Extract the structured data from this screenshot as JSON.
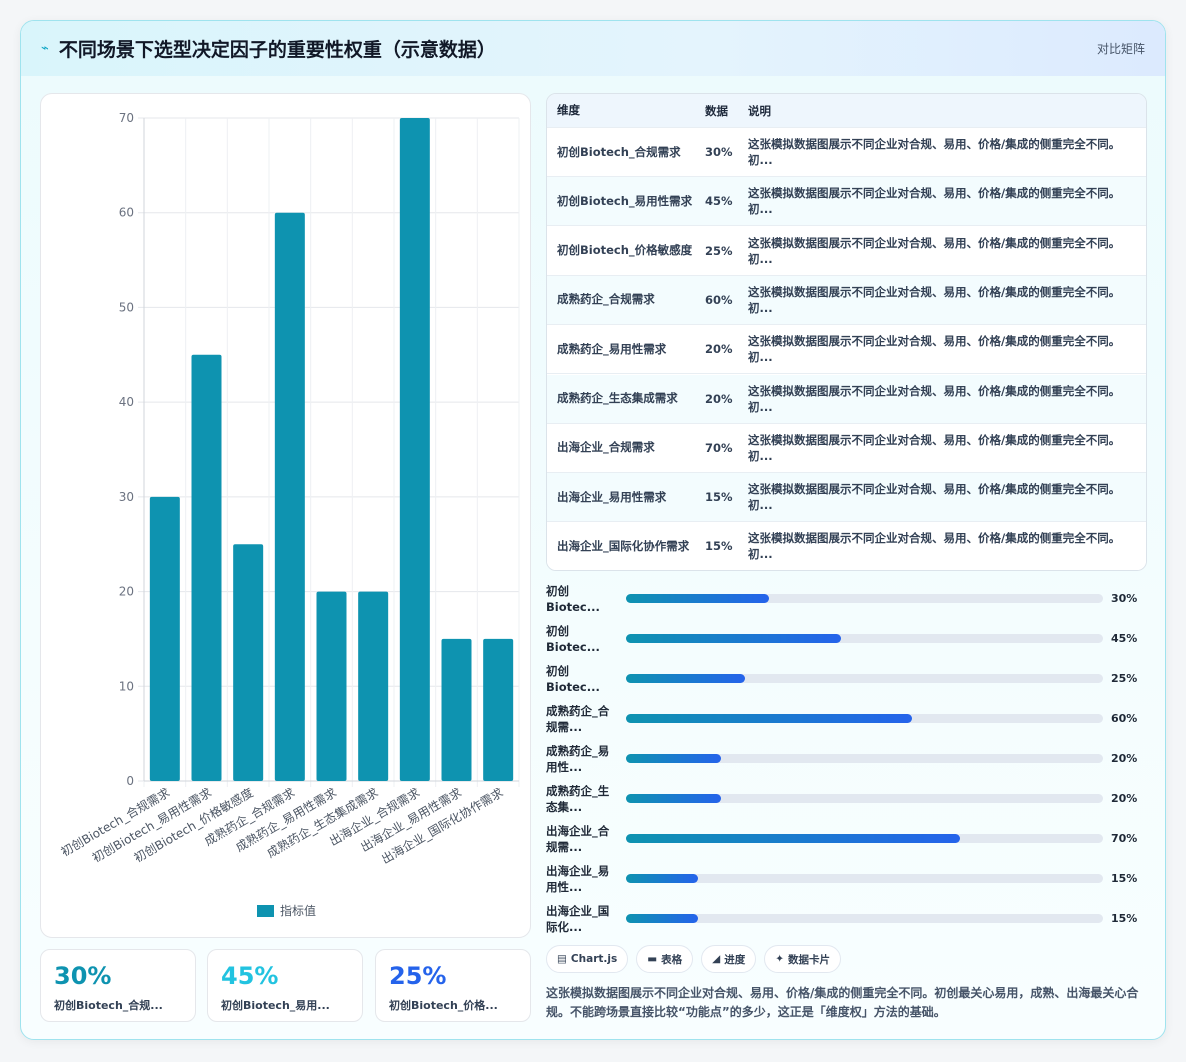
{
  "header": {
    "title": "不同场景下选型决定因子的重要性权重（示意数据）",
    "tag": "对比矩阵",
    "icon": "flash-icon"
  },
  "chart_data": {
    "type": "bar",
    "categories": [
      "初创Biotech_合规需求",
      "初创Biotech_易用性需求",
      "初创Biotech_价格敏感度",
      "成熟药企_合规需求",
      "成熟药企_易用性需求",
      "成熟药企_生态集成需求",
      "出海企业_合规需求",
      "出海企业_易用性需求",
      "出海企业_国际化协作需求"
    ],
    "series": [
      {
        "name": "指标值",
        "values": [
          30,
          45,
          25,
          60,
          20,
          20,
          70,
          15,
          15
        ]
      }
    ],
    "ylim": [
      0,
      70
    ],
    "yticks": [
      0,
      10,
      20,
      30,
      40,
      50,
      60,
      70
    ],
    "grid": true,
    "legend": "bottom",
    "color": "#0e93b0"
  },
  "table": {
    "headers": [
      "维度",
      "数据",
      "说明"
    ],
    "rows": [
      {
        "name": "初创Biotech_合规需求",
        "value": "30%",
        "desc": "这张模拟数据图展示不同企业对合规、易用、价格/集成的侧重完全不同。初..."
      },
      {
        "name": "初创Biotech_易用性需求",
        "value": "45%",
        "desc": "这张模拟数据图展示不同企业对合规、易用、价格/集成的侧重完全不同。初..."
      },
      {
        "name": "初创Biotech_价格敏感度",
        "value": "25%",
        "desc": "这张模拟数据图展示不同企业对合规、易用、价格/集成的侧重完全不同。初..."
      },
      {
        "name": "成熟药企_合规需求",
        "value": "60%",
        "desc": "这张模拟数据图展示不同企业对合规、易用、价格/集成的侧重完全不同。初..."
      },
      {
        "name": "成熟药企_易用性需求",
        "value": "20%",
        "desc": "这张模拟数据图展示不同企业对合规、易用、价格/集成的侧重完全不同。初..."
      },
      {
        "name": "成熟药企_生态集成需求",
        "value": "20%",
        "desc": "这张模拟数据图展示不同企业对合规、易用、价格/集成的侧重完全不同。初..."
      },
      {
        "name": "出海企业_合规需求",
        "value": "70%",
        "desc": "这张模拟数据图展示不同企业对合规、易用、价格/集成的侧重完全不同。初..."
      },
      {
        "name": "出海企业_易用性需求",
        "value": "15%",
        "desc": "这张模拟数据图展示不同企业对合规、易用、价格/集成的侧重完全不同。初..."
      },
      {
        "name": "出海企业_国际化协作需求",
        "value": "15%",
        "desc": "这张模拟数据图展示不同企业对合规、易用、价格/集成的侧重完全不同。初..."
      }
    ]
  },
  "progress": [
    {
      "label": "初创Biotec...",
      "value": 30,
      "text": "30%"
    },
    {
      "label": "初创Biotec...",
      "value": 45,
      "text": "45%"
    },
    {
      "label": "初创Biotec...",
      "value": 25,
      "text": "25%"
    },
    {
      "label": "成熟药企_合规需...",
      "value": 60,
      "text": "60%"
    },
    {
      "label": "成熟药企_易用性...",
      "value": 20,
      "text": "20%"
    },
    {
      "label": "成熟药企_生态集...",
      "value": 20,
      "text": "20%"
    },
    {
      "label": "出海企业_合规需...",
      "value": 70,
      "text": "70%"
    },
    {
      "label": "出海企业_易用性...",
      "value": 15,
      "text": "15%"
    },
    {
      "label": "出海企业_国际化...",
      "value": 15,
      "text": "15%"
    }
  ],
  "pills": [
    {
      "icon": "▤",
      "label": "Chart.js"
    },
    {
      "icon": "▬",
      "label": "表格"
    },
    {
      "icon": "◢",
      "label": "进度"
    },
    {
      "icon": "✦",
      "label": "数据卡片"
    }
  ],
  "note": "这张模拟数据图展示不同企业对合规、易用、价格/集成的侧重完全不同。初创最关心易用，成熟、出海最关心合规。不能跨场景直接比较“功能点”的多少，这正是「维度权」方法的基础。",
  "stats": [
    {
      "value": "30%",
      "label": "初创Biotech_合规...",
      "color": "#0e93b0"
    },
    {
      "value": "45%",
      "label": "初创Biotech_易用...",
      "color": "#22c3e0"
    },
    {
      "value": "25%",
      "label": "初创Biotech_价格...",
      "color": "#2563eb"
    }
  ]
}
